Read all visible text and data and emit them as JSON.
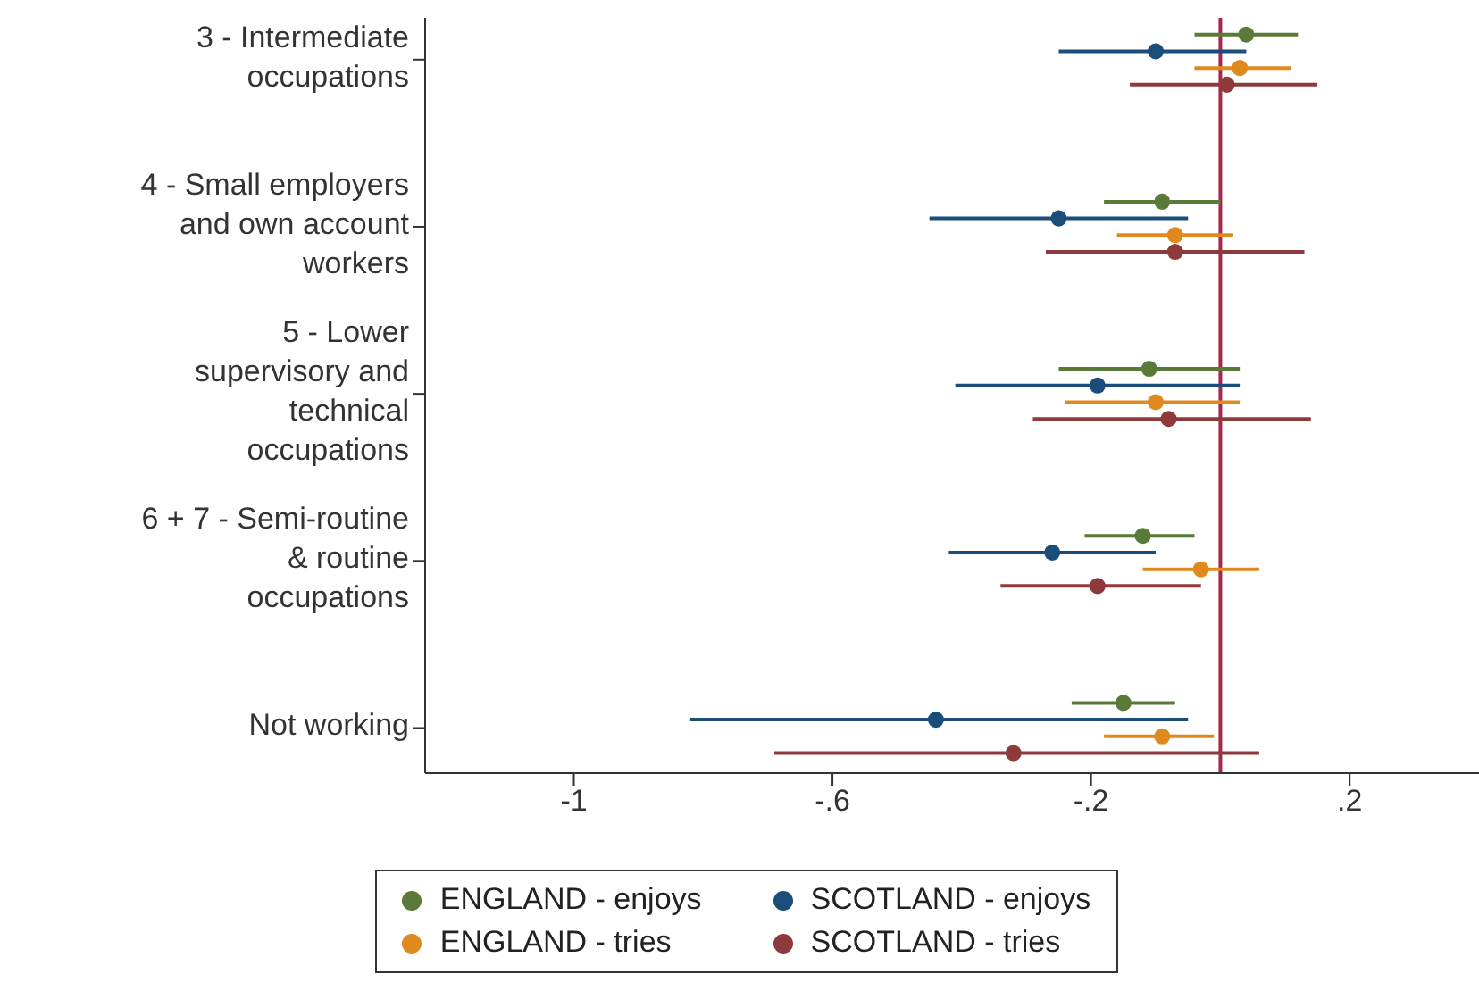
{
  "chart_data": {
    "type": "scatter",
    "orientation": "horizontal",
    "categories": [
      "3 - Intermediate occupations",
      "4 - Small employers and own account workers",
      "5 - Lower supervisory and technical occupations",
      "6 + 7 - Semi-routine & routine occupations",
      "Not working"
    ],
    "series": [
      {
        "name": "ENGLAND - enjoys",
        "color": "#5a7a3a",
        "values": [
          0.04,
          -0.09,
          -0.11,
          -0.12,
          -0.15
        ],
        "errors": [
          [
            -0.04,
            0.12
          ],
          [
            -0.18,
            0.0
          ],
          [
            -0.25,
            0.03
          ],
          [
            -0.21,
            -0.04
          ],
          [
            -0.23,
            -0.07
          ]
        ]
      },
      {
        "name": "SCOTLAND - enjoys",
        "color": "#1a4d7a",
        "values": [
          -0.1,
          -0.25,
          -0.19,
          -0.26,
          -0.44
        ],
        "errors": [
          [
            -0.25,
            0.04
          ],
          [
            -0.45,
            -0.05
          ],
          [
            -0.41,
            0.03
          ],
          [
            -0.42,
            -0.1
          ],
          [
            -0.82,
            -0.05
          ]
        ]
      },
      {
        "name": "ENGLAND - tries",
        "color": "#e08a1e",
        "values": [
          0.03,
          -0.07,
          -0.1,
          -0.03,
          -0.09
        ],
        "errors": [
          [
            -0.04,
            0.11
          ],
          [
            -0.16,
            0.02
          ],
          [
            -0.24,
            0.03
          ],
          [
            -0.12,
            0.06
          ],
          [
            -0.18,
            -0.01
          ]
        ]
      },
      {
        "name": "SCOTLAND - tries",
        "color": "#8e3a3a",
        "values": [
          0.01,
          -0.07,
          -0.08,
          -0.19,
          -0.32
        ],
        "errors": [
          [
            -0.14,
            0.15
          ],
          [
            -0.27,
            0.13
          ],
          [
            -0.29,
            0.14
          ],
          [
            -0.34,
            -0.03
          ],
          [
            -0.69,
            0.06
          ]
        ]
      }
    ],
    "xlim": [
      -1.23,
      0.4
    ],
    "xticks": [
      -1,
      {
        "value": -0.6,
        "label": "-.6"
      },
      {
        "value": -0.2,
        "label": "-.2"
      },
      {
        "value": 0.2,
        "label": ".2"
      }
    ],
    "ref_lines": [
      {
        "axis": "x",
        "value": 0,
        "color": "#a3284a"
      }
    ],
    "marker": "circle",
    "legend": "bottom"
  }
}
